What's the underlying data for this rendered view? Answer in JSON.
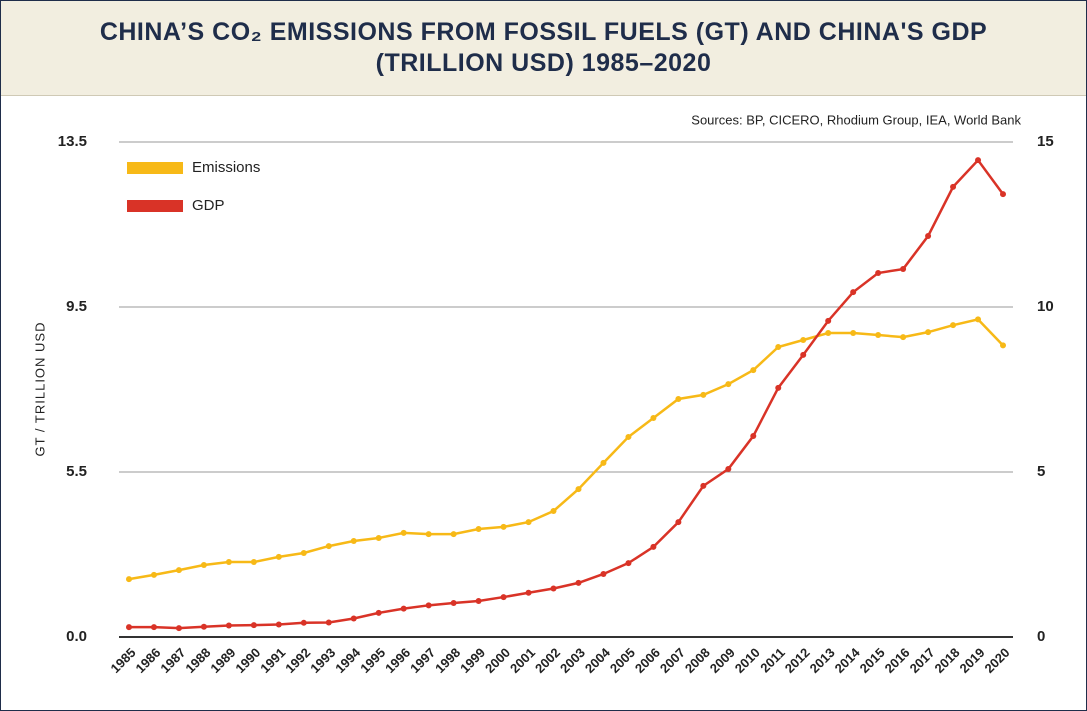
{
  "chart_data": {
    "type": "line",
    "title": "CHINA’S CO₂ EMISSIONS FROM FOSSIL FUELS (GT) AND CHINA'S GDP (TRILLION USD) 1985–2020",
    "source": "Sources: BP, CICERO, Rhodium Group, IEA, World Bank",
    "y_label": "GT / TRILLION USD",
    "categories": [
      "1985",
      "1986",
      "1987",
      "1988",
      "1989",
      "1990",
      "1991",
      "1992",
      "1993",
      "1994",
      "1995",
      "1996",
      "1997",
      "1998",
      "1999",
      "2000",
      "2001",
      "2002",
      "2003",
      "2004",
      "2005",
      "2006",
      "2007",
      "2008",
      "2009",
      "2010",
      "2011",
      "2012",
      "2013",
      "2014",
      "2015",
      "2016",
      "2017",
      "2018",
      "2019",
      "2020"
    ],
    "series": [
      {
        "name": "Emissions",
        "color": "#f7b917",
        "axis": "y",
        "values": [
          1.93,
          2.07,
          2.23,
          2.4,
          2.5,
          2.5,
          2.67,
          2.8,
          3.03,
          3.2,
          3.3,
          3.47,
          3.43,
          3.43,
          3.6,
          3.67,
          3.83,
          4.2,
          4.93,
          5.72,
          6.35,
          6.81,
          7.27,
          7.37,
          7.63,
          7.97,
          8.53,
          8.7,
          8.87,
          8.87,
          8.82,
          8.77,
          8.89,
          9.06,
          9.2,
          8.57
        ]
      },
      {
        "name": "GDP",
        "color": "#d93327",
        "axis": "y2",
        "values": [
          0.3,
          0.3,
          0.27,
          0.31,
          0.35,
          0.36,
          0.38,
          0.43,
          0.44,
          0.56,
          0.73,
          0.86,
          0.96,
          1.03,
          1.09,
          1.21,
          1.34,
          1.47,
          1.64,
          1.91,
          2.24,
          2.73,
          3.48,
          4.58,
          5.09,
          6.09,
          7.55,
          8.55,
          9.58,
          10.45,
          11.03,
          11.15,
          12.15,
          13.64,
          14.45,
          13.42
        ]
      }
    ],
    "ylim": [
      0,
      13.5
    ],
    "yticks": [
      {
        "value": 0,
        "label": "0.0"
      },
      5.5,
      9.5,
      13.5
    ],
    "y2lim": [
      0,
      15
    ],
    "y2ticks": [
      0,
      5,
      10,
      15
    ],
    "grid": true,
    "legend": "top-left"
  }
}
